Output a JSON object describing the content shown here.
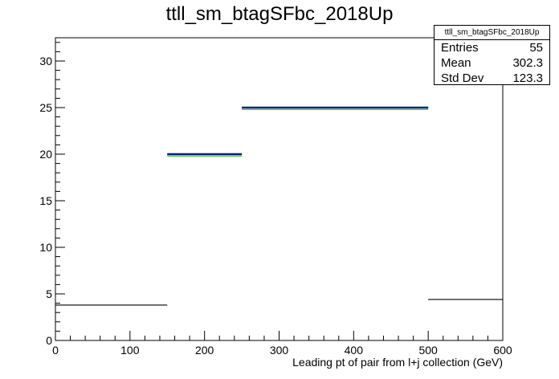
{
  "chart_data": {
    "type": "histogram",
    "title": "ttll_sm_btagSFbc_2018Up",
    "xlabel": "Leading pt of pair from l+j collection (GeV)",
    "ylabel": "",
    "xlim": [
      0,
      600
    ],
    "ylim": [
      0,
      32.5
    ],
    "x_ticks": [
      0,
      100,
      200,
      300,
      400,
      500,
      600
    ],
    "y_ticks": [
      0,
      5,
      10,
      15,
      20,
      25,
      30
    ],
    "grid": false,
    "bins": [
      {
        "xlow": 0,
        "xhigh": 150,
        "value": 3.8
      },
      {
        "xlow": 150,
        "xhigh": 250,
        "value": 20.0
      },
      {
        "xlow": 250,
        "xhigh": 500,
        "value": 25.0
      },
      {
        "xlow": 500,
        "xhigh": 600,
        "value": 4.4
      }
    ],
    "series": [
      {
        "color": "#000000",
        "values": [
          3.8,
          20.0,
          25.0,
          4.4
        ]
      },
      {
        "color": "#00247d",
        "values": [
          null,
          20.0,
          25.0,
          null
        ]
      },
      {
        "color": "#2eb82e",
        "values": [
          null,
          19.8,
          24.8,
          null
        ]
      }
    ],
    "stats": {
      "name": "ttll_sm_btagSFbc_2018Up",
      "entries_label": "Entries",
      "entries": "55",
      "mean_label": "Mean",
      "mean": "302.3",
      "stddev_label": "Std Dev",
      "stddev": "123.3"
    }
  }
}
